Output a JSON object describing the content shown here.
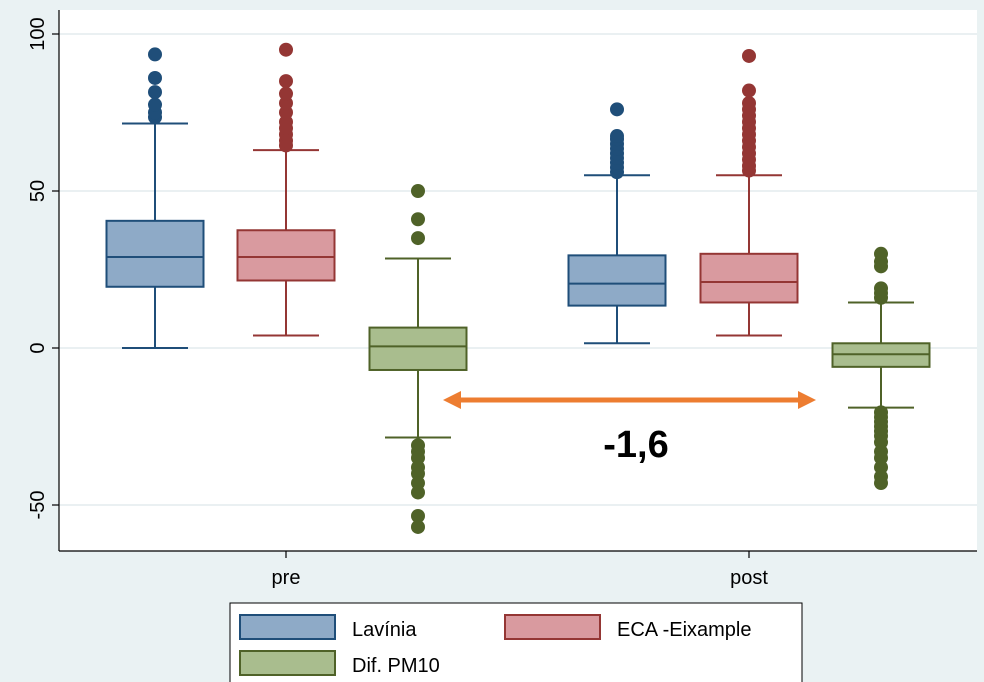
{
  "chart_data": {
    "type": "box",
    "title": "",
    "xlabel": "",
    "ylabel": "",
    "ylim": [
      -65,
      107
    ],
    "yticks": [
      100,
      50,
      0,
      -50
    ],
    "grid": true,
    "legend_position": "bottom",
    "categories": [
      "pre",
      "post"
    ],
    "series": [
      {
        "name": "Lavínia",
        "color": "#1f4e79",
        "fill": "#8eaac7",
        "boxes": [
          {
            "category": "pre",
            "whisker_low": 0,
            "q1": 19.5,
            "median": 29,
            "q3": 40.5,
            "whisker_high": 71.5,
            "outliers": [
              73.5,
              75,
              77.5,
              81.5,
              86,
              93.5
            ]
          },
          {
            "category": "post",
            "whisker_low": 1.5,
            "q1": 13.5,
            "median": 20.5,
            "q3": 29.5,
            "whisker_high": 55,
            "outliers": [
              56,
              57.5,
              59,
              60.5,
              62,
              63.5,
              65,
              66.5,
              67.5,
              76
            ]
          }
        ]
      },
      {
        "name": "ECA -Eixample",
        "color": "#943634",
        "fill": "#d99a9f",
        "boxes": [
          {
            "category": "pre",
            "whisker_low": 4,
            "q1": 21.5,
            "median": 29,
            "q3": 37.5,
            "whisker_high": 63,
            "outliers": [
              64.5,
              66,
              68,
              70,
              72,
              75,
              78,
              81,
              85,
              95
            ]
          },
          {
            "category": "post",
            "whisker_low": 4,
            "q1": 14.5,
            "median": 21,
            "q3": 30,
            "whisker_high": 55,
            "outliers": [
              56.5,
              58,
              60,
              62,
              64,
              66,
              68,
              70,
              72,
              74,
              76,
              78,
              82,
              93
            ]
          }
        ]
      },
      {
        "name": "Dif. PM10",
        "color": "#4f6228",
        "fill": "#a9bd8e",
        "boxes": [
          {
            "category": "pre",
            "whisker_low": -28.5,
            "q1": -7,
            "median": 0.5,
            "q3": 6.5,
            "whisker_high": 28.5,
            "outliers": [
              35,
              41,
              50,
              -31,
              -33,
              -35,
              -38,
              -40,
              -43,
              -46,
              -53.5,
              -57
            ]
          },
          {
            "category": "post",
            "whisker_low": -19,
            "q1": -6,
            "median": -2,
            "q3": 1.5,
            "whisker_high": 14.5,
            "outliers": [
              16,
              17.5,
              19,
              26,
              27.5,
              30,
              -20.5,
              -22,
              -23.5,
              -25,
              -26.5,
              -28,
              -30,
              -33,
              -35,
              -38,
              -41,
              -43
            ]
          }
        ]
      }
    ],
    "annotation": {
      "text": "-1,6",
      "arrow_color": "#ed7d31"
    }
  }
}
